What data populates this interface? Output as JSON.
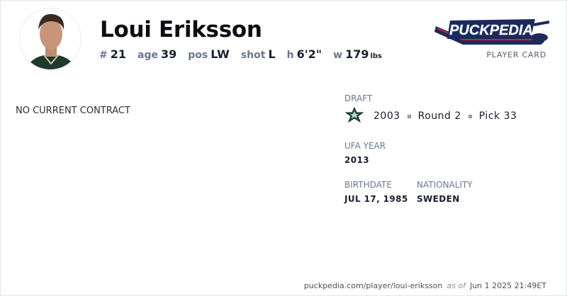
{
  "player": {
    "name": "Loui Eriksson",
    "number_label": "#",
    "number": "21",
    "age_label": "age",
    "age": "39",
    "pos_label": "pos",
    "pos": "LW",
    "shot_label": "shot",
    "shot": "L",
    "height_label": "h",
    "height": "6'2\"",
    "weight_label": "w",
    "weight": "179",
    "weight_unit": "lbs"
  },
  "brand": {
    "logo_text": "PuckPedia",
    "subtitle": "PLAYER CARD",
    "colors": {
      "navy": "#1b2a5c",
      "red": "#d2232a"
    }
  },
  "contract": {
    "status": "NO CURRENT CONTRACT"
  },
  "draft": {
    "label": "DRAFT",
    "team_icon": "dallas-stars-logo",
    "year": "2003",
    "round": "Round 2",
    "pick": "Pick 33"
  },
  "ufa": {
    "label": "UFA YEAR",
    "value": "2013"
  },
  "birthdate": {
    "label": "BIRTHDATE",
    "value": "JUL 17, 1985"
  },
  "nationality": {
    "label": "NATIONALITY",
    "value": "SWEDEN"
  },
  "footer": {
    "url": "puckpedia.com/player/loui-eriksson",
    "as_of": "as of",
    "timestamp": "Jun 1 2025 21:49ET"
  }
}
